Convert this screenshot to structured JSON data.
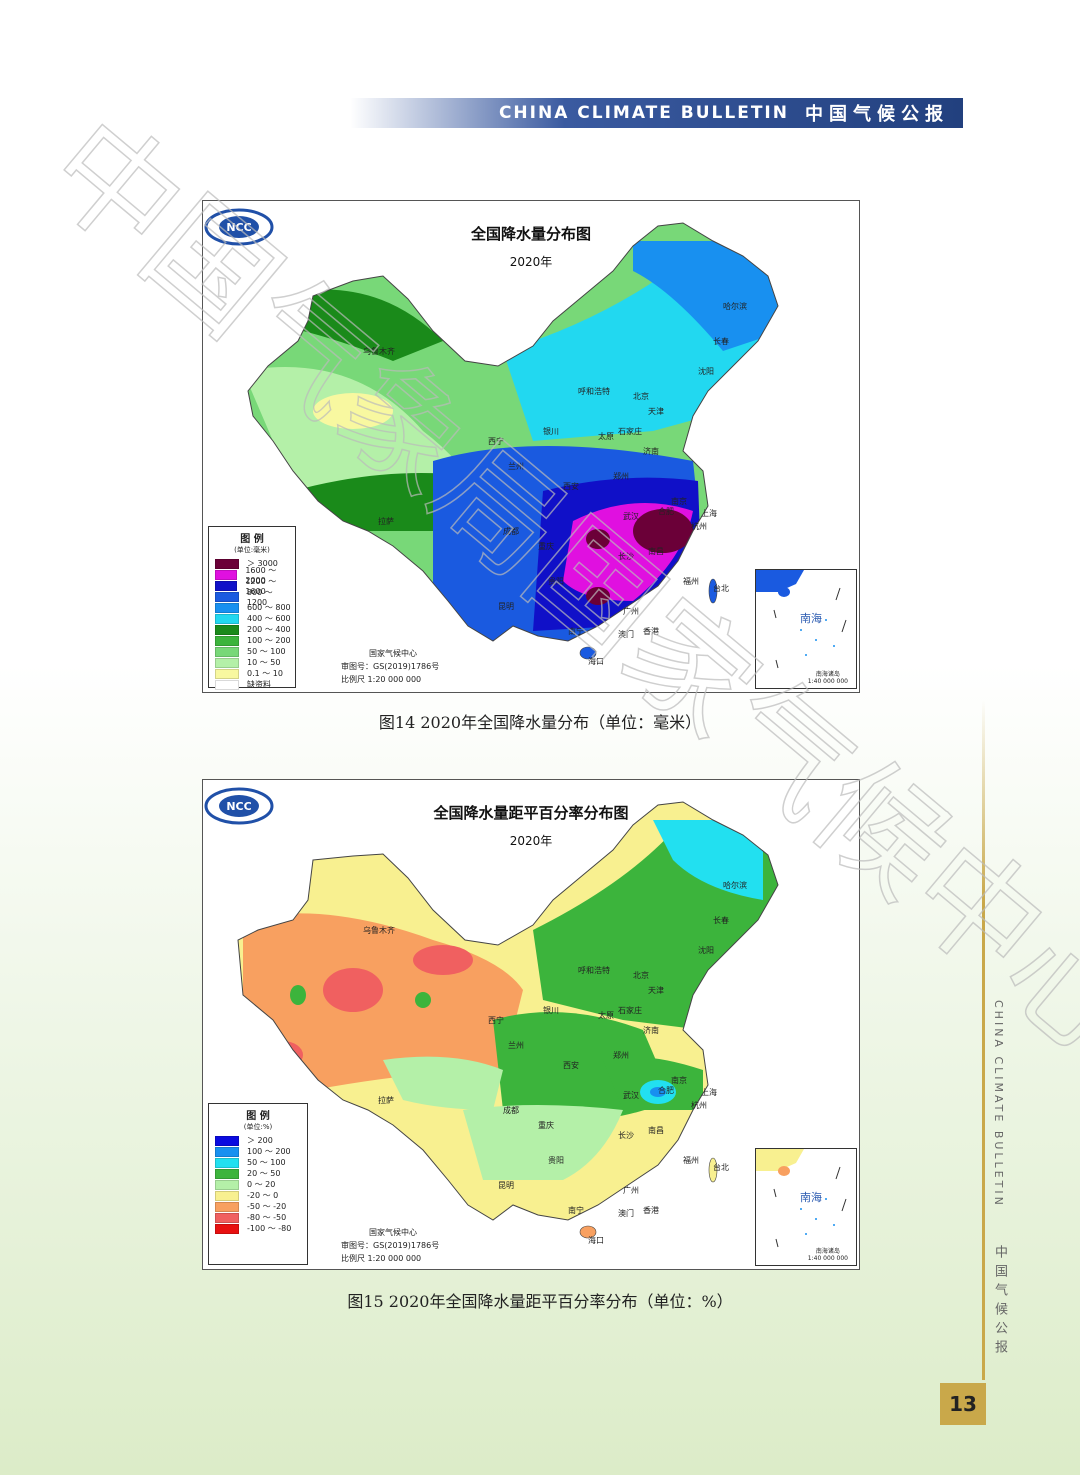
{
  "header": {
    "title_en": "CHINA CLIMATE BULLETIN",
    "title_zh": "中国气候公报"
  },
  "maps": [
    {
      "title": "全国降水量分布图",
      "year": "2020年",
      "caption": "图14  2020年全国降水量分布（单位：毫米）",
      "legend": {
        "title": "图 例",
        "unit": "(单位:毫米)",
        "items": [
          {
            "label": "＞ 3000",
            "color": "#6b0038"
          },
          {
            "label": "1600 ～ 2000",
            "color": "#e010e0"
          },
          {
            "label": "1200 ～ 1600",
            "color": "#1010c8"
          },
          {
            "label": "800 ～ 1200",
            "color": "#1a5ae0"
          },
          {
            "label": "600 ～ 800",
            "color": "#1890f0"
          },
          {
            "label": "400 ～ 600",
            "color": "#22d8f0"
          },
          {
            "label": "200 ～ 400",
            "color": "#1a8a1a"
          },
          {
            "label": "100 ～ 200",
            "color": "#3cb43c"
          },
          {
            "label": "50 ～ 100",
            "color": "#78d878"
          },
          {
            "label": "10 ～ 50",
            "color": "#b4f0a8"
          },
          {
            "label": "0.1 ～ 10",
            "color": "#f8f8a0"
          },
          {
            "label": "缺资料",
            "color": "#ffffff"
          }
        ]
      },
      "credits": {
        "org": "国家气候中心",
        "review": "审图号：GS(2019)1786号",
        "scale": "比例尺  1:20 000 000"
      },
      "cities": [
        "乌鲁木齐",
        "哈尔滨",
        "长春",
        "沈阳",
        "呼和浩特",
        "北京",
        "天津",
        "石家庄",
        "太原",
        "济南",
        "银川",
        "西宁",
        "兰州",
        "郑州",
        "西安",
        "拉萨",
        "成都",
        "重庆",
        "武汉",
        "合肥",
        "南京",
        "上海",
        "杭州",
        "长沙",
        "南昌",
        "贵阳",
        "昆明",
        "福州",
        "台北",
        "广州",
        "南宁",
        "香港",
        "澳门",
        "海口"
      ]
    },
    {
      "title": "全国降水量距平百分率分布图",
      "year": "2020年",
      "caption": "图15  2020年全国降水量距平百分率分布（单位：%）",
      "legend": {
        "title": "图 例",
        "unit": "(单位:%)",
        "items": [
          {
            "label": "＞ 200",
            "color": "#0a0ae0"
          },
          {
            "label": "100 ～ 200",
            "color": "#1890f0"
          },
          {
            "label": "50 ～ 100",
            "color": "#22e0f0"
          },
          {
            "label": "20 ～ 50",
            "color": "#3cb43c"
          },
          {
            "label": "0 ～ 20",
            "color": "#b4f0a8"
          },
          {
            "label": "-20 ～ 0",
            "color": "#f8f090"
          },
          {
            "label": "-50 ～ -20",
            "color": "#f8a060"
          },
          {
            "label": "-80 ～ -50",
            "color": "#f06060"
          },
          {
            "label": "-100 ～ -80",
            "color": "#e81010"
          }
        ]
      },
      "credits": {
        "org": "国家气候中心",
        "review": "审图号：GS(2019)1786号",
        "scale": "比例尺  1:20 000 000"
      },
      "cities": [
        "乌鲁木齐",
        "哈尔滨",
        "长春",
        "沈阳",
        "呼和浩特",
        "北京",
        "天津",
        "石家庄",
        "太原",
        "济南",
        "银川",
        "西宁",
        "兰州",
        "郑州",
        "西安",
        "拉萨",
        "成都",
        "重庆",
        "武汉",
        "合肥",
        "南京",
        "上海",
        "杭州",
        "长沙",
        "南昌",
        "贵阳",
        "昆明",
        "福州",
        "台北",
        "广州",
        "南宁",
        "香港",
        "澳门",
        "海口"
      ]
    }
  ],
  "inset": {
    "label": "南海",
    "scale_line1": "南海诸岛",
    "scale_line2": "1:40 000 000"
  },
  "side": {
    "en": "CHINA CLIMATE BULLETIN",
    "zh": "中国气候公报"
  },
  "page_number": "13",
  "watermark": "中国气象局国家气候中心"
}
